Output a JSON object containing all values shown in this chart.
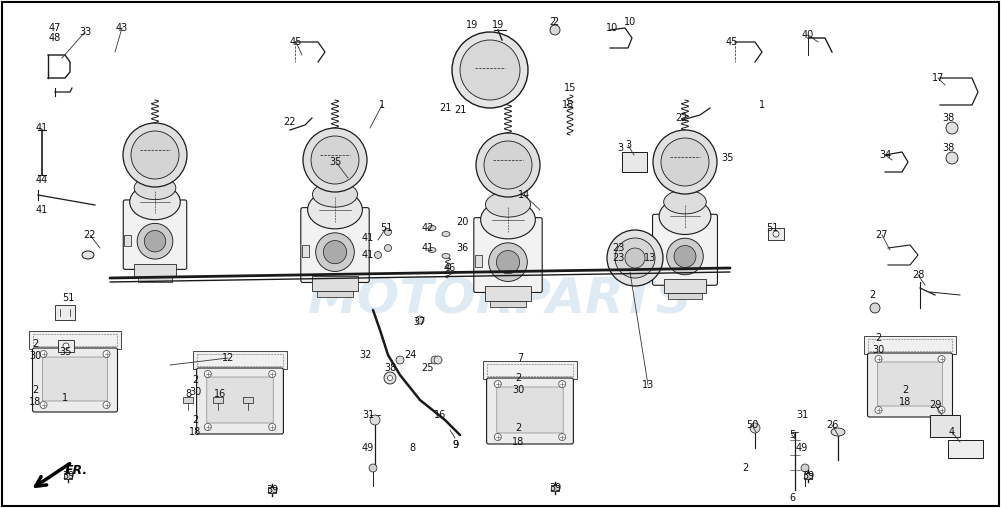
{
  "bg_color": "#ffffff",
  "border_color": "#000000",
  "text_color": "#000000",
  "line_color": "#1a1a1a",
  "watermark_text": "MOTORPARTS",
  "watermark_color": "#b8d4e8",
  "watermark_alpha": 0.45,
  "figsize": [
    10.01,
    5.08
  ],
  "dpi": 100
}
